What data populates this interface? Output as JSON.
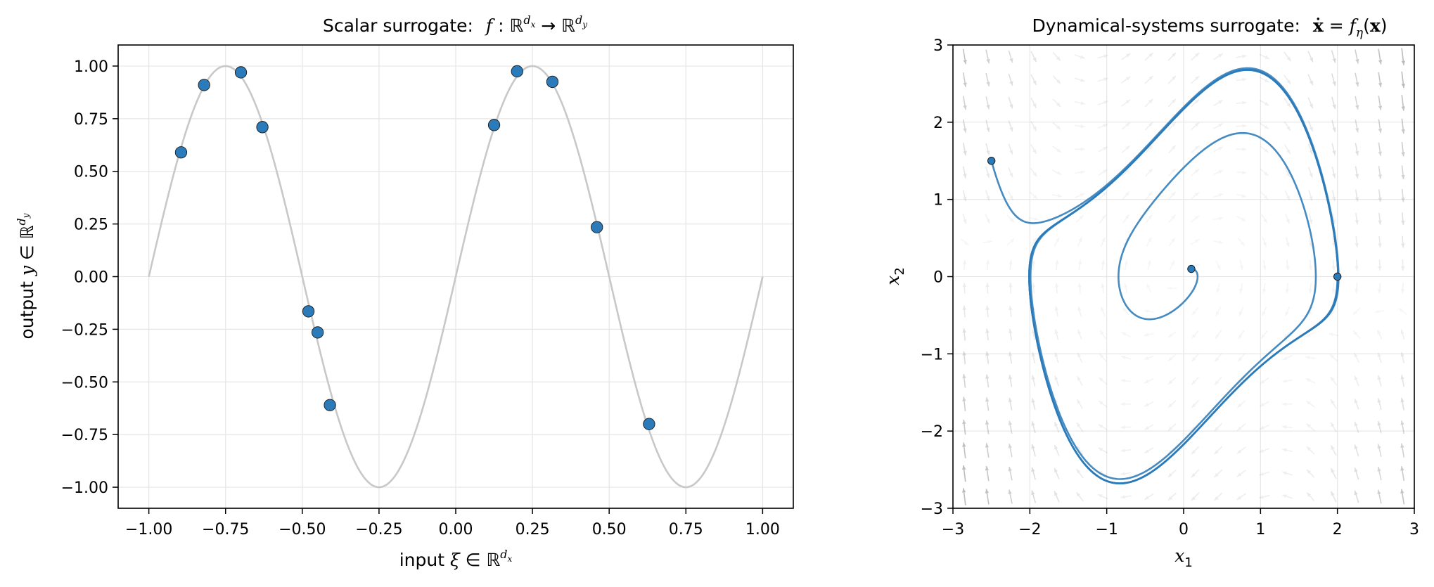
{
  "chart_data": [
    {
      "type": "scatter",
      "title_prefix": "Scalar surrogate:",
      "title_math": "f : ℝ^{d_x} → ℝ^{d_y}",
      "xlabel_prefix": "input",
      "xlabel_math": "ξ ∈ ℝ^{d_x}",
      "ylabel_prefix": "output",
      "ylabel_math": "y ∈ ℝ^{d_y}",
      "xlim": [
        -1.1,
        1.1
      ],
      "ylim": [
        -1.1,
        1.1
      ],
      "xticks": [
        -1.0,
        -0.75,
        -0.5,
        -0.25,
        0.0,
        0.25,
        0.5,
        0.75,
        1.0
      ],
      "xtick_labels": [
        "−1.00",
        "−0.75",
        "−0.50",
        "−0.25",
        "0.00",
        "0.25",
        "0.50",
        "0.75",
        "1.00"
      ],
      "yticks": [
        -1.0,
        -0.75,
        -0.5,
        -0.25,
        0.0,
        0.25,
        0.5,
        0.75,
        1.0
      ],
      "ytick_labels": [
        "−1.00",
        "−0.75",
        "−0.50",
        "−0.25",
        "0.00",
        "0.25",
        "0.50",
        "0.75",
        "1.00"
      ],
      "grid": true,
      "curve": {
        "function": "sin(2πx)",
        "x_range": [
          -1.0,
          1.0
        ],
        "color": "#c8c8c8"
      },
      "points": {
        "color": "#2b7bba",
        "x": [
          -0.895,
          -0.82,
          -0.7,
          -0.63,
          -0.48,
          -0.45,
          -0.41,
          0.125,
          0.2,
          0.315,
          0.46,
          0.63
        ],
        "y": [
          0.59,
          0.91,
          0.97,
          0.71,
          -0.165,
          -0.265,
          -0.61,
          0.72,
          0.975,
          0.925,
          0.235,
          -0.7
        ]
      }
    },
    {
      "type": "line",
      "title_prefix": "Dynamical-systems surrogate:",
      "title_math": "ẋ = f_η(x)",
      "xlabel_math": "x_1",
      "ylabel_math": "x_2",
      "xlim": [
        -3,
        3
      ],
      "ylim": [
        -3,
        3
      ],
      "xticks": [
        -3,
        -2,
        -1,
        0,
        1,
        2,
        3
      ],
      "xtick_labels": [
        "−3",
        "−2",
        "−1",
        "0",
        "1",
        "2",
        "3"
      ],
      "yticks": [
        -3,
        -2,
        -1,
        0,
        1,
        2,
        3
      ],
      "ytick_labels": [
        "−3",
        "−2",
        "−1",
        "0",
        "1",
        "2",
        "3"
      ],
      "grid": true,
      "vector_field": "van der Pol (mu = 1)",
      "trajectory_color": "#2b7bba",
      "trajectories": [
        {
          "start": [
            -2.5,
            1.5
          ],
          "t_end": 20
        },
        {
          "start": [
            0.1,
            0.1
          ],
          "t_end": 26
        },
        {
          "start": [
            2.0,
            0.0
          ],
          "t_end": 20
        }
      ]
    }
  ]
}
